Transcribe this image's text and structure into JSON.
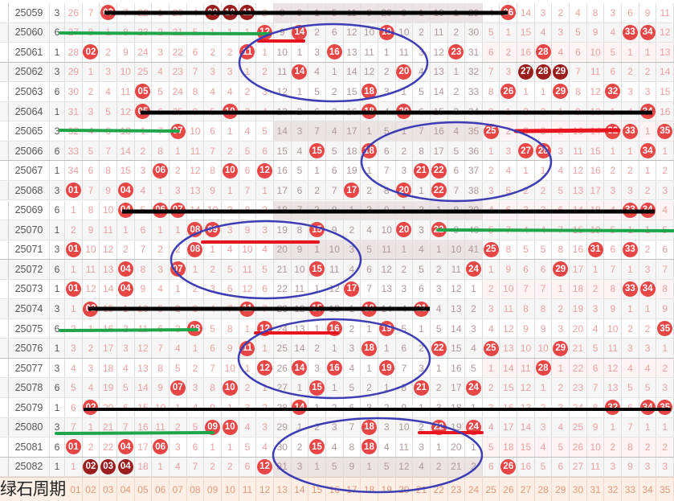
{
  "colors": {
    "ball": "#e84545",
    "ball_consecutive": "#9a1e1e",
    "missing_text": "#eea0a0",
    "line_black": "#000000",
    "line_green": "#1fa64a",
    "line_red": "#e8141e",
    "ellipse_blue": "#3c3cb4"
  },
  "footer": {
    "label": "绿石周期",
    "numbers": [
      "01",
      "02",
      "03",
      "04",
      "05",
      "06",
      "07",
      "08",
      "09",
      "10",
      "11",
      "12",
      "13",
      "14",
      "15",
      "16",
      "17",
      "18",
      "19",
      "20",
      "21",
      "22",
      "23",
      "24",
      "25",
      "26",
      "27",
      "28",
      "29",
      "30",
      "31",
      "32",
      "33",
      "34",
      "35"
    ]
  },
  "rows": [
    {
      "period": "25059",
      "cycle": "3",
      "hits": [
        3,
        9,
        10,
        11,
        26
      ],
      "consecutive": [
        9,
        10,
        11
      ],
      "cells": [
        "26",
        "7",
        "03",
        "7",
        "22",
        "1",
        "20",
        "4",
        "09",
        "10",
        "11",
        "2",
        "8",
        "9",
        "1",
        "5",
        "11",
        "9",
        "29",
        "9",
        "1",
        "10",
        "1",
        "29",
        "4",
        "26",
        "14",
        "3",
        "2",
        "4",
        "8",
        "3",
        "6",
        "9",
        "11"
      ]
    },
    {
      "period": "25060",
      "cycle": "6",
      "hits": [
        12,
        14,
        19,
        33,
        34
      ],
      "consecutive": [],
      "cells": [
        "27",
        "8",
        "1",
        "8",
        "23",
        "2",
        "21",
        "5",
        "1",
        "1",
        "1",
        "12",
        "9",
        "14",
        "2",
        "6",
        "12",
        "10",
        "19",
        "10",
        "2",
        "11",
        "2",
        "30",
        "5",
        "1",
        "15",
        "4",
        "3",
        "5",
        "9",
        "4",
        "33",
        "34",
        "12"
      ]
    },
    {
      "period": "25061",
      "cycle": "1",
      "hits": [
        2,
        11,
        16,
        23,
        28
      ],
      "consecutive": [],
      "cells": [
        "28",
        "02",
        "2",
        "9",
        "24",
        "3",
        "22",
        "6",
        "2",
        "2",
        "11",
        "1",
        "10",
        "1",
        "3",
        "16",
        "13",
        "11",
        "1",
        "11",
        "3",
        "12",
        "23",
        "31",
        "6",
        "2",
        "16",
        "28",
        "4",
        "6",
        "10",
        "5",
        "1",
        "1",
        "13"
      ]
    },
    {
      "period": "25062",
      "cycle": "3",
      "hits": [
        14,
        20,
        27,
        28,
        29
      ],
      "consecutive": [
        27,
        28,
        29
      ],
      "cells": [
        "29",
        "1",
        "3",
        "10",
        "25",
        "4",
        "23",
        "7",
        "3",
        "3",
        "1",
        "2",
        "11",
        "14",
        "4",
        "1",
        "14",
        "12",
        "2",
        "20",
        "4",
        "13",
        "1",
        "32",
        "7",
        "3",
        "27",
        "28",
        "29",
        "7",
        "11",
        "6",
        "2",
        "2",
        "14"
      ]
    },
    {
      "period": "25063",
      "cycle": "6",
      "hits": [
        5,
        18,
        26,
        29,
        32
      ],
      "consecutive": [],
      "cells": [
        "30",
        "2",
        "4",
        "11",
        "05",
        "5",
        "24",
        "8",
        "4",
        "4",
        "2",
        "3",
        "12",
        "1",
        "5",
        "2",
        "15",
        "18",
        "3",
        "1",
        "5",
        "14",
        "2",
        "33",
        "8",
        "26",
        "1",
        "1",
        "29",
        "8",
        "12",
        "32",
        "3",
        "3",
        "15"
      ]
    },
    {
      "period": "25064",
      "cycle": "1",
      "hits": [
        5,
        10,
        18,
        20,
        34
      ],
      "consecutive": [],
      "cells": [
        "31",
        "3",
        "5",
        "12",
        "05",
        "6",
        "25",
        "9",
        "5",
        "10",
        "3",
        "4",
        "13",
        "2",
        "6",
        "3",
        "16",
        "18",
        "4",
        "20",
        "6",
        "15",
        "3",
        "34",
        "9",
        "1",
        "2",
        "2",
        "1",
        "9",
        "13",
        "1",
        "4",
        "34",
        "16"
      ]
    },
    {
      "period": "25065",
      "cycle": "3",
      "hits": [
        7,
        25,
        32,
        33,
        35
      ],
      "consecutive": [],
      "cells": [
        "32",
        "4",
        "6",
        "13",
        "1",
        "7",
        "07",
        "10",
        "6",
        "1",
        "4",
        "5",
        "14",
        "3",
        "7",
        "4",
        "17",
        "1",
        "5",
        "1",
        "7",
        "16",
        "4",
        "35",
        "25",
        "2",
        "3",
        "3",
        "2",
        "10",
        "14",
        "32",
        "33",
        "1",
        "35"
      ]
    },
    {
      "period": "25066",
      "cycle": "6",
      "hits": [
        15,
        18,
        27,
        28,
        34
      ],
      "consecutive": [],
      "cells": [
        "33",
        "5",
        "7",
        "14",
        "2",
        "8",
        "1",
        "11",
        "7",
        "2",
        "5",
        "6",
        "15",
        "4",
        "15",
        "5",
        "18",
        "18",
        "6",
        "2",
        "8",
        "17",
        "5",
        "36",
        "1",
        "3",
        "27",
        "28",
        "3",
        "11",
        "15",
        "1",
        "1",
        "34",
        "1"
      ]
    },
    {
      "period": "25067",
      "cycle": "1",
      "hits": [
        6,
        10,
        12,
        21,
        22
      ],
      "consecutive": [],
      "cells": [
        "34",
        "6",
        "8",
        "15",
        "3",
        "06",
        "2",
        "12",
        "8",
        "10",
        "6",
        "12",
        "16",
        "5",
        "1",
        "6",
        "19",
        "1",
        "7",
        "3",
        "21",
        "22",
        "6",
        "37",
        "2",
        "4",
        "1",
        "1",
        "4",
        "12",
        "16",
        "2",
        "2",
        "1",
        "2"
      ]
    },
    {
      "period": "25068",
      "cycle": "3",
      "hits": [
        1,
        4,
        17,
        20,
        22
      ],
      "consecutive": [],
      "cells": [
        "01",
        "7",
        "9",
        "04",
        "4",
        "1",
        "3",
        "13",
        "9",
        "1",
        "7",
        "1",
        "17",
        "6",
        "2",
        "7",
        "17",
        "2",
        "8",
        "20",
        "1",
        "22",
        "7",
        "38",
        "3",
        "5",
        "2",
        "2",
        "5",
        "13",
        "17",
        "3",
        "3",
        "2",
        "3"
      ]
    },
    {
      "period": "25069",
      "cycle": "6",
      "hits": [
        4,
        6,
        7,
        33,
        34
      ],
      "consecutive": [],
      "cells": [
        "1",
        "8",
        "10",
        "04",
        "5",
        "06",
        "07",
        "14",
        "10",
        "2",
        "8",
        "2",
        "18",
        "7",
        "3",
        "8",
        "1",
        "3",
        "9",
        "1",
        "2",
        "1",
        "8",
        "39",
        "4",
        "6",
        "3",
        "3",
        "6",
        "14",
        "18",
        "4",
        "33",
        "34",
        "4"
      ]
    },
    {
      "period": "25070",
      "cycle": "1",
      "hits": [
        8,
        9,
        15,
        20,
        22
      ],
      "consecutive": [],
      "cells": [
        "2",
        "9",
        "11",
        "1",
        "6",
        "1",
        "1",
        "08",
        "09",
        "3",
        "9",
        "3",
        "19",
        "8",
        "15",
        "9",
        "2",
        "4",
        "10",
        "20",
        "3",
        "22",
        "9",
        "40",
        "5",
        "7",
        "4",
        "4",
        "7",
        "15",
        "19",
        "5",
        "1",
        "1",
        "5"
      ]
    },
    {
      "period": "25071",
      "cycle": "3",
      "hits": [
        1,
        8,
        25,
        31,
        33
      ],
      "consecutive": [],
      "cells": [
        "01",
        "10",
        "12",
        "2",
        "7",
        "2",
        "2",
        "08",
        "1",
        "4",
        "10",
        "4",
        "20",
        "9",
        "1",
        "10",
        "3",
        "5",
        "11",
        "1",
        "4",
        "1",
        "10",
        "41",
        "25",
        "8",
        "5",
        "5",
        "8",
        "16",
        "31",
        "6",
        "33",
        "2",
        "6"
      ]
    },
    {
      "period": "25072",
      "cycle": "6",
      "hits": [
        4,
        7,
        15,
        24,
        29
      ],
      "consecutive": [],
      "cells": [
        "1",
        "11",
        "13",
        "04",
        "8",
        "3",
        "07",
        "1",
        "2",
        "5",
        "11",
        "5",
        "21",
        "10",
        "15",
        "11",
        "4",
        "6",
        "12",
        "2",
        "5",
        "2",
        "11",
        "24",
        "1",
        "9",
        "6",
        "6",
        "29",
        "17",
        "1",
        "7",
        "1",
        "3",
        "7"
      ]
    },
    {
      "period": "25073",
      "cycle": "1",
      "hits": [
        1,
        4,
        17,
        33,
        34
      ],
      "consecutive": [],
      "cells": [
        "01",
        "12",
        "14",
        "04",
        "9",
        "4",
        "1",
        "2",
        "3",
        "6",
        "12",
        "6",
        "22",
        "11",
        "1",
        "12",
        "17",
        "7",
        "13",
        "3",
        "6",
        "3",
        "12",
        "1",
        "2",
        "10",
        "7",
        "7",
        "1",
        "18",
        "2",
        "8",
        "33",
        "34",
        "8"
      ]
    },
    {
      "period": "25074",
      "cycle": "3",
      "hits": [
        2,
        11,
        15,
        18,
        21
      ],
      "consecutive": [],
      "cells": [
        "1",
        "02",
        "15",
        "1",
        "10",
        "5",
        "2",
        "3",
        "4",
        "7",
        "11",
        "7",
        "23",
        "12",
        "15",
        "13",
        "1",
        "18",
        "14",
        "4",
        "21",
        "4",
        "13",
        "2",
        "3",
        "11",
        "8",
        "8",
        "2",
        "19",
        "3",
        "9",
        "1",
        "1",
        "9"
      ]
    },
    {
      "period": "25075",
      "cycle": "6",
      "hits": [
        8,
        12,
        16,
        19,
        35
      ],
      "consecutive": [],
      "cells": [
        "2",
        "1",
        "16",
        "2",
        "11",
        "6",
        "3",
        "08",
        "5",
        "8",
        "1",
        "12",
        "24",
        "13",
        "1",
        "16",
        "2",
        "1",
        "19",
        "5",
        "1",
        "5",
        "14",
        "3",
        "4",
        "12",
        "9",
        "9",
        "3",
        "20",
        "4",
        "10",
        "2",
        "2",
        "35"
      ]
    },
    {
      "period": "25076",
      "cycle": "1",
      "hits": [
        11,
        18,
        22,
        25,
        29
      ],
      "consecutive": [],
      "cells": [
        "3",
        "2",
        "17",
        "3",
        "12",
        "7",
        "4",
        "1",
        "6",
        "9",
        "11",
        "1",
        "25",
        "14",
        "2",
        "1",
        "3",
        "18",
        "1",
        "6",
        "2",
        "22",
        "15",
        "4",
        "25",
        "13",
        "10",
        "10",
        "29",
        "21",
        "5",
        "11",
        "3",
        "3",
        "1"
      ]
    },
    {
      "period": "25077",
      "cycle": "3",
      "hits": [
        12,
        14,
        16,
        19,
        28
      ],
      "consecutive": [],
      "cells": [
        "4",
        "3",
        "18",
        "4",
        "13",
        "8",
        "5",
        "2",
        "7",
        "10",
        "1",
        "12",
        "26",
        "14",
        "3",
        "16",
        "4",
        "1",
        "19",
        "7",
        "3",
        "1",
        "16",
        "5",
        "1",
        "14",
        "11",
        "28",
        "1",
        "22",
        "6",
        "12",
        "4",
        "4",
        "2"
      ]
    },
    {
      "period": "25078",
      "cycle": "6",
      "hits": [
        7,
        10,
        15,
        21,
        24
      ],
      "consecutive": [],
      "cells": [
        "5",
        "4",
        "19",
        "5",
        "14",
        "9",
        "07",
        "3",
        "8",
        "10",
        "2",
        "1",
        "27",
        "1",
        "15",
        "1",
        "5",
        "2",
        "1",
        "8",
        "21",
        "2",
        "17",
        "24",
        "2",
        "15",
        "12",
        "1",
        "2",
        "23",
        "7",
        "13",
        "5",
        "5",
        "3"
      ]
    },
    {
      "period": "25079",
      "cycle": "1",
      "hits": [
        2,
        14,
        32,
        34,
        35
      ],
      "consecutive": [],
      "cells": [
        "6",
        "02",
        "20",
        "6",
        "15",
        "10",
        "1",
        "4",
        "9",
        "1",
        "3",
        "2",
        "28",
        "14",
        "1",
        "2",
        "6",
        "3",
        "2",
        "9",
        "1",
        "3",
        "18",
        "1",
        "3",
        "16",
        "13",
        "2",
        "3",
        "24",
        "8",
        "32",
        "6",
        "34",
        "35"
      ]
    },
    {
      "period": "25080",
      "cycle": "3",
      "hits": [
        9,
        10,
        18,
        22,
        24
      ],
      "consecutive": [],
      "cells": [
        "7",
        "1",
        "21",
        "7",
        "16",
        "11",
        "2",
        "5",
        "09",
        "10",
        "4",
        "3",
        "29",
        "1",
        "2",
        "3",
        "7",
        "18",
        "3",
        "10",
        "2",
        "22",
        "19",
        "24",
        "4",
        "17",
        "14",
        "3",
        "4",
        "25",
        "9",
        "1",
        "7",
        "1",
        "1"
      ]
    },
    {
      "period": "25081",
      "cycle": "6",
      "hits": [
        1,
        4,
        6,
        15,
        18
      ],
      "consecutive": [],
      "cells": [
        "01",
        "2",
        "22",
        "04",
        "17",
        "06",
        "3",
        "6",
        "1",
        "1",
        "5",
        "4",
        "30",
        "2",
        "15",
        "4",
        "8",
        "18",
        "4",
        "11",
        "3",
        "1",
        "20",
        "1",
        "5",
        "18",
        "15",
        "4",
        "5",
        "26",
        "10",
        "2",
        "8",
        "2",
        "2"
      ]
    },
    {
      "period": "25082",
      "cycle": "1",
      "hits": [
        2,
        3,
        4,
        12,
        26
      ],
      "consecutive": [
        2,
        3,
        4
      ],
      "cells": [
        "1",
        "02",
        "03",
        "04",
        "18",
        "1",
        "4",
        "7",
        "2",
        "2",
        "6",
        "12",
        "31",
        "3",
        "1",
        "5",
        "9",
        "1",
        "5",
        "12",
        "4",
        "2",
        "21",
        "2",
        "6",
        "26",
        "16",
        "5",
        "6",
        "27",
        "11",
        "3",
        "9",
        "3",
        "3"
      ]
    }
  ]
}
